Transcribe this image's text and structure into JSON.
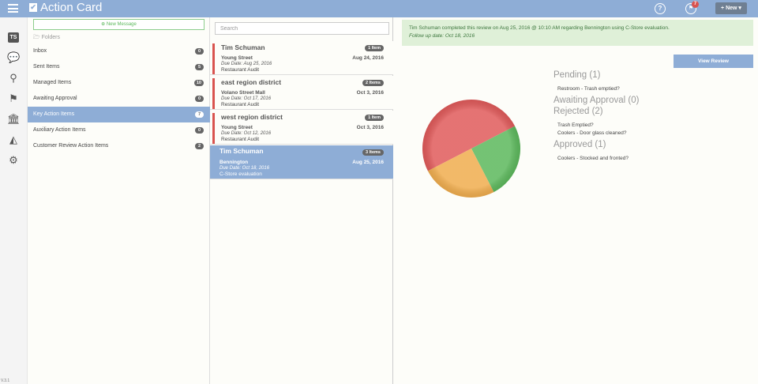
{
  "header": {
    "app_title": "Action Card",
    "help_icon": "question-circle-icon",
    "flag_badge": "7",
    "new_button": "+ New ▾"
  },
  "rail": [
    "ts-avatar",
    "comments-icon",
    "map-marker-icon",
    "flag-icon",
    "bank-icon",
    "area-chart-icon",
    "gear-icon"
  ],
  "rail_avatar": "TS",
  "version": "V.3.1",
  "folders": {
    "new_message": "⊕ New Message",
    "header": "🗁 Folders",
    "items": [
      {
        "label": "Inbox",
        "count": "0"
      },
      {
        "label": "Sent Items",
        "count": "5"
      },
      {
        "label": "Managed Items",
        "count": "10"
      },
      {
        "label": "Awaiting Approval",
        "count": "0"
      },
      {
        "label": "Key Action Items",
        "count": "7",
        "active": true
      },
      {
        "label": "Auxiliary Action Items",
        "count": "0"
      },
      {
        "label": "Customer Review Action Items",
        "count": "2"
      }
    ]
  },
  "list": {
    "search_placeholder": "Search",
    "cards": [
      {
        "title": "Tim Schuman",
        "badge": "1 Item",
        "location": "Young Street",
        "date": "Aug 24, 2016",
        "due": "Due Date: Aug 25, 2016",
        "form": "Restaurant Audit"
      },
      {
        "title": "east region district",
        "badge": "2 Items",
        "location": "Volano Street Mall",
        "date": "Oct 3, 2016",
        "due": "Due Date: Oct 17, 2016",
        "form": "Restaurant Audit"
      },
      {
        "title": "west region district",
        "badge": "1 Item",
        "location": "Young Street",
        "date": "Oct 3, 2016",
        "due": "Due Date: Oct 12, 2016",
        "form": "Restaurant Audit"
      },
      {
        "title": "Tim Schuman",
        "badge": "3 Items",
        "location": "Bennington",
        "date": "Aug 25, 2016",
        "due": "Due Date: Oct 18, 2016",
        "form": "C-Store evaluation",
        "active": true
      }
    ]
  },
  "detail": {
    "notice": "Tim Schuman completed this review on Aug 25, 2016 @ 10:10 AM regarding Bennington using C-Store evaluation.",
    "follow_up": "Follow up date: Oct 18, 2016",
    "view_review": "View Review",
    "sections": [
      {
        "title": "Pending (1)",
        "items": [
          "Restroom - Trash emptied?"
        ]
      },
      {
        "title": "Awaiting Approval (0)",
        "items": []
      },
      {
        "title": "Rejected (2)",
        "items": [
          "Trash Emptied?",
          "Coolers - Door glass cleaned?"
        ]
      },
      {
        "title": "Approved (1)",
        "items": [
          "Coolers - Stocked and fronted?"
        ]
      }
    ]
  },
  "chart_data": {
    "type": "pie",
    "categories": [
      "Rejected",
      "Approved",
      "Pending",
      "Awaiting Approval"
    ],
    "values": [
      2,
      1,
      1,
      0
    ],
    "colors": [
      "#e05a5a",
      "#5cb85c",
      "#f0ad4e",
      "#8eadd6"
    ]
  }
}
